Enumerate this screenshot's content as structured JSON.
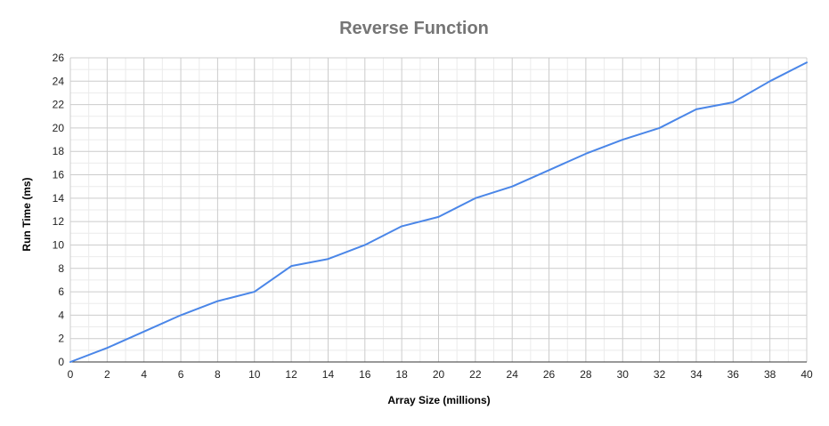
{
  "chart_data": {
    "type": "line",
    "title": "Reverse Function",
    "xlabel": "Array Size (millions)",
    "ylabel": "Run Time (ms)",
    "xlim": [
      0,
      40
    ],
    "ylim": [
      0,
      26
    ],
    "x_ticks": [
      0,
      2,
      4,
      6,
      8,
      10,
      12,
      14,
      16,
      18,
      20,
      22,
      24,
      26,
      28,
      30,
      32,
      34,
      36,
      38,
      40
    ],
    "y_ticks": [
      0,
      2,
      4,
      6,
      8,
      10,
      12,
      14,
      16,
      18,
      20,
      22,
      24,
      26
    ],
    "grid": true,
    "legend": "none",
    "colors": {
      "series": "#4a86e8",
      "title": "#757575"
    },
    "series": [
      {
        "x": [
          0,
          2,
          4,
          6,
          8,
          10,
          12,
          14,
          16,
          18,
          20,
          22,
          24,
          26,
          28,
          30,
          32,
          34,
          36,
          38,
          40
        ],
        "values": [
          0,
          1.2,
          2.6,
          4.0,
          5.2,
          6.0,
          8.2,
          8.8,
          10.0,
          11.6,
          12.4,
          14.0,
          15.0,
          16.4,
          17.8,
          19.0,
          20.0,
          21.6,
          22.2,
          24.0,
          25.6
        ]
      }
    ]
  }
}
